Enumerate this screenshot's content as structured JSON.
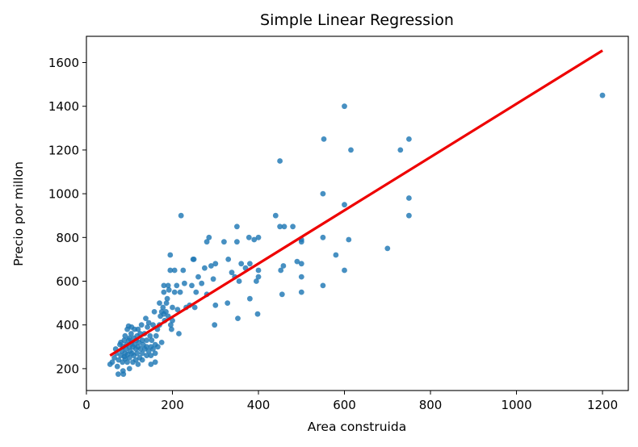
{
  "chart_data": {
    "type": "scatter",
    "title": "Simple Linear Regression",
    "xlabel": "Area construida",
    "ylabel": "Precio por millon",
    "xlim": [
      0,
      1260
    ],
    "ylim": [
      100,
      1720
    ],
    "xticks": [
      0,
      200,
      400,
      600,
      800,
      1000,
      1200
    ],
    "yticks": [
      200,
      400,
      600,
      800,
      1000,
      1200,
      1400,
      1600
    ],
    "grid": false,
    "colors": {
      "points": "#1f77b4",
      "line": "#ee0000",
      "axes": "#000000"
    },
    "series": [
      {
        "type": "scatter",
        "points": [
          [
            55,
            220
          ],
          [
            60,
            230
          ],
          [
            65,
            250
          ],
          [
            68,
            290
          ],
          [
            70,
            270
          ],
          [
            72,
            210
          ],
          [
            74,
            175
          ],
          [
            75,
            240
          ],
          [
            78,
            310
          ],
          [
            80,
            260
          ],
          [
            80,
            320
          ],
          [
            82,
            280
          ],
          [
            84,
            230
          ],
          [
            85,
            190
          ],
          [
            85,
            300
          ],
          [
            86,
            175
          ],
          [
            88,
            330
          ],
          [
            88,
            255
          ],
          [
            90,
            245
          ],
          [
            90,
            270
          ],
          [
            90,
            350
          ],
          [
            92,
            290
          ],
          [
            93,
            310
          ],
          [
            95,
            230
          ],
          [
            95,
            380
          ],
          [
            96,
            265
          ],
          [
            98,
            330
          ],
          [
            98,
            395
          ],
          [
            100,
            200
          ],
          [
            100,
            250
          ],
          [
            100,
            300
          ],
          [
            100,
            340
          ],
          [
            102,
            280
          ],
          [
            104,
            360
          ],
          [
            105,
            320
          ],
          [
            105,
            390
          ],
          [
            106,
            270
          ],
          [
            108,
            230
          ],
          [
            108,
            300
          ],
          [
            110,
            340
          ],
          [
            110,
            260
          ],
          [
            112,
            310
          ],
          [
            112,
            380
          ],
          [
            115,
            290
          ],
          [
            115,
            240
          ],
          [
            116,
            330
          ],
          [
            118,
            350
          ],
          [
            118,
            270
          ],
          [
            120,
            300
          ],
          [
            120,
            220
          ],
          [
            120,
            380
          ],
          [
            122,
            320
          ],
          [
            124,
            250
          ],
          [
            125,
            360
          ],
          [
            126,
            290
          ],
          [
            128,
            400
          ],
          [
            130,
            330
          ],
          [
            130,
            270
          ],
          [
            130,
            240
          ],
          [
            132,
            310
          ],
          [
            135,
            360
          ],
          [
            136,
            290
          ],
          [
            138,
            430
          ],
          [
            140,
            300
          ],
          [
            140,
            260
          ],
          [
            140,
            330
          ],
          [
            142,
            390
          ],
          [
            145,
            280
          ],
          [
            145,
            410
          ],
          [
            148,
            350
          ],
          [
            150,
            300
          ],
          [
            150,
            260
          ],
          [
            150,
            220
          ],
          [
            152,
            330
          ],
          [
            155,
            400
          ],
          [
            155,
            290
          ],
          [
            158,
            460
          ],
          [
            160,
            310
          ],
          [
            160,
            230
          ],
          [
            160,
            270
          ],
          [
            162,
            350
          ],
          [
            165,
            380
          ],
          [
            166,
            300
          ],
          [
            170,
            500
          ],
          [
            170,
            400
          ],
          [
            172,
            440
          ],
          [
            175,
            460
          ],
          [
            175,
            320
          ],
          [
            178,
            480
          ],
          [
            180,
            450
          ],
          [
            180,
            550
          ],
          [
            180,
            580
          ],
          [
            182,
            420
          ],
          [
            185,
            460
          ],
          [
            186,
            500
          ],
          [
            188,
            520
          ],
          [
            190,
            580
          ],
          [
            190,
            440
          ],
          [
            192,
            560
          ],
          [
            195,
            720
          ],
          [
            195,
            650
          ],
          [
            196,
            400
          ],
          [
            198,
            380
          ],
          [
            200,
            420
          ],
          [
            200,
            480
          ],
          [
            205,
            650
          ],
          [
            205,
            550
          ],
          [
            210,
            580
          ],
          [
            212,
            470
          ],
          [
            215,
            360
          ],
          [
            218,
            550
          ],
          [
            220,
            900
          ],
          [
            225,
            650
          ],
          [
            228,
            590
          ],
          [
            232,
            480
          ],
          [
            240,
            490
          ],
          [
            245,
            580
          ],
          [
            248,
            700
          ],
          [
            250,
            700
          ],
          [
            252,
            480
          ],
          [
            255,
            550
          ],
          [
            260,
            620
          ],
          [
            268,
            590
          ],
          [
            275,
            660
          ],
          [
            280,
            540
          ],
          [
            280,
            780
          ],
          [
            285,
            800
          ],
          [
            290,
            670
          ],
          [
            295,
            610
          ],
          [
            298,
            400
          ],
          [
            300,
            490
          ],
          [
            300,
            680
          ],
          [
            320,
            780
          ],
          [
            328,
            500
          ],
          [
            330,
            700
          ],
          [
            338,
            640
          ],
          [
            345,
            620
          ],
          [
            350,
            850
          ],
          [
            350,
            780
          ],
          [
            352,
            430
          ],
          [
            355,
            600
          ],
          [
            360,
            680
          ],
          [
            370,
            660
          ],
          [
            378,
            800
          ],
          [
            380,
            680
          ],
          [
            380,
            520
          ],
          [
            390,
            790
          ],
          [
            395,
            600
          ],
          [
            398,
            450
          ],
          [
            400,
            620
          ],
          [
            400,
            650
          ],
          [
            400,
            800
          ],
          [
            440,
            900
          ],
          [
            450,
            1150
          ],
          [
            450,
            850
          ],
          [
            452,
            650
          ],
          [
            455,
            540
          ],
          [
            458,
            670
          ],
          [
            460,
            850
          ],
          [
            480,
            850
          ],
          [
            490,
            690
          ],
          [
            500,
            680
          ],
          [
            500,
            620
          ],
          [
            500,
            550
          ],
          [
            500,
            780
          ],
          [
            500,
            790
          ],
          [
            550,
            580
          ],
          [
            550,
            1000
          ],
          [
            550,
            800
          ],
          [
            552,
            1250
          ],
          [
            580,
            720
          ],
          [
            600,
            1400
          ],
          [
            600,
            950
          ],
          [
            600,
            650
          ],
          [
            610,
            790
          ],
          [
            615,
            1200
          ],
          [
            700,
            750
          ],
          [
            730,
            1200
          ],
          [
            750,
            1250
          ],
          [
            750,
            980
          ],
          [
            750,
            900
          ],
          [
            1200,
            1450
          ]
        ]
      },
      {
        "type": "line",
        "x": [
          55,
          1200
        ],
        "y": [
          260,
          1655
        ]
      }
    ]
  }
}
